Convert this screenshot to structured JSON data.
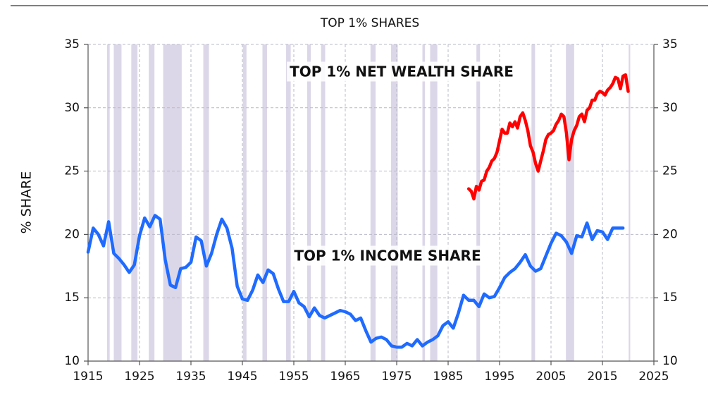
{
  "chart_data": {
    "type": "line",
    "title": "TOP 1% SHARES",
    "ylabel": "% SHARE",
    "annotations": [
      "TOP 1% NET WEALTH SHARE",
      "TOP 1% INCOME SHARE"
    ],
    "xlim": [
      1915,
      2025
    ],
    "xticks": [
      1915,
      1925,
      1935,
      1945,
      1955,
      1965,
      1975,
      1985,
      1995,
      2005,
      2015,
      2025
    ],
    "ylim": [
      10,
      35
    ],
    "yticks": [
      10,
      15,
      20,
      25,
      30,
      35
    ],
    "y2lim": [
      10,
      35
    ],
    "y2ticks": [
      10,
      15,
      20,
      25,
      30,
      35
    ],
    "grid": true,
    "recession_color": "#dcd7e8",
    "recessions": [
      [
        1918.7,
        1919.2
      ],
      [
        1920.0,
        1921.5
      ],
      [
        1923.4,
        1924.6
      ],
      [
        1926.8,
        1927.9
      ],
      [
        1929.6,
        1933.2
      ],
      [
        1937.4,
        1938.5
      ],
      [
        1945.1,
        1945.8
      ],
      [
        1948.9,
        1949.8
      ],
      [
        1953.5,
        1954.4
      ],
      [
        1957.6,
        1958.3
      ],
      [
        1960.3,
        1961.1
      ],
      [
        1969.9,
        1970.9
      ],
      [
        1973.9,
        1975.2
      ],
      [
        1980.0,
        1980.5
      ],
      [
        1981.5,
        1982.9
      ],
      [
        1990.5,
        1991.2
      ],
      [
        2001.2,
        2001.9
      ],
      [
        2007.9,
        2009.5
      ],
      [
        2020.1,
        2020.4
      ]
    ],
    "series": [
      {
        "name": "TOP 1% INCOME SHARE",
        "color": "#1f6bff",
        "x": [
          1915,
          1916,
          1917,
          1918,
          1919,
          1920,
          1921,
          1922,
          1923,
          1924,
          1925,
          1926,
          1927,
          1928,
          1929,
          1930,
          1931,
          1932,
          1933,
          1934,
          1935,
          1936,
          1937,
          1938,
          1939,
          1940,
          1941,
          1942,
          1943,
          1944,
          1945,
          1946,
          1947,
          1948,
          1949,
          1950,
          1951,
          1952,
          1953,
          1954,
          1955,
          1956,
          1957,
          1958,
          1959,
          1960,
          1961,
          1962,
          1963,
          1964,
          1965,
          1966,
          1967,
          1968,
          1969,
          1970,
          1971,
          1972,
          1973,
          1974,
          1975,
          1976,
          1977,
          1978,
          1979,
          1980,
          1981,
          1982,
          1983,
          1984,
          1985,
          1986,
          1987,
          1988,
          1989,
          1990,
          1991,
          1992,
          1993,
          1994,
          1995,
          1996,
          1997,
          1998,
          1999,
          2000,
          2001,
          2002,
          2003,
          2004,
          2005,
          2006,
          2007,
          2008,
          2009,
          2010,
          2011,
          2012,
          2013,
          2014,
          2015,
          2016,
          2017,
          2018,
          2019
        ],
        "values": [
          18.6,
          20.5,
          20.0,
          19.1,
          21.0,
          18.5,
          18.1,
          17.6,
          17.0,
          17.6,
          19.9,
          21.3,
          20.6,
          21.5,
          21.2,
          18.0,
          16.0,
          15.8,
          17.3,
          17.4,
          17.8,
          19.8,
          19.5,
          17.5,
          18.5,
          20.0,
          21.2,
          20.5,
          18.9,
          15.9,
          14.9,
          14.8,
          15.6,
          16.8,
          16.2,
          17.2,
          16.9,
          15.7,
          14.7,
          14.7,
          15.5,
          14.6,
          14.3,
          13.5,
          14.2,
          13.6,
          13.4,
          13.6,
          13.8,
          14.0,
          13.9,
          13.7,
          13.2,
          13.4,
          12.4,
          11.5,
          11.8,
          11.9,
          11.7,
          11.2,
          11.1,
          11.1,
          11.4,
          11.2,
          11.7,
          11.2,
          11.5,
          11.7,
          12.0,
          12.8,
          13.1,
          12.6,
          13.8,
          15.2,
          14.8,
          14.8,
          14.3,
          15.3,
          15.0,
          15.1,
          15.8,
          16.6,
          17.0,
          17.3,
          17.8,
          18.4,
          17.5,
          17.1,
          17.3,
          18.3,
          19.3,
          20.1,
          19.9,
          19.4,
          18.5,
          19.9,
          19.8,
          20.9,
          19.6,
          20.3,
          20.2,
          19.6,
          20.5,
          20.5,
          20.5
        ]
      },
      {
        "name": "TOP 1% NET WEALTH SHARE",
        "color": "#ff0000",
        "x": [
          1989,
          1989.5,
          1990,
          1990.5,
          1991,
          1991.5,
          1992,
          1992.5,
          1993,
          1993.5,
          1994,
          1994.5,
          1995,
          1995.5,
          1996,
          1996.5,
          1997,
          1997.5,
          1998,
          1998.5,
          1999,
          1999.5,
          2000,
          2000.5,
          2001,
          2001.5,
          2002,
          2002.5,
          2003,
          2003.5,
          2004,
          2004.5,
          2005,
          2005.5,
          2006,
          2006.5,
          2007,
          2007.5,
          2008,
          2008.5,
          2009,
          2009.5,
          2010,
          2010.5,
          2011,
          2011.5,
          2012,
          2012.5,
          2013,
          2013.5,
          2014,
          2014.5,
          2015,
          2015.5,
          2016,
          2016.5,
          2017,
          2017.5,
          2018,
          2018.5,
          2019,
          2019.5,
          2020
        ],
        "values": [
          23.6,
          23.4,
          22.8,
          23.8,
          23.5,
          24.2,
          24.3,
          25.0,
          25.3,
          25.8,
          26.0,
          26.5,
          27.4,
          28.3,
          28.0,
          28.0,
          28.8,
          28.5,
          28.9,
          28.4,
          29.3,
          29.6,
          29.0,
          28.2,
          27.0,
          26.5,
          25.6,
          25.0,
          25.8,
          26.6,
          27.5,
          27.9,
          28.0,
          28.2,
          28.7,
          29.0,
          29.5,
          29.3,
          28.0,
          25.9,
          27.5,
          28.2,
          28.6,
          29.3,
          29.5,
          28.9,
          29.8,
          30.0,
          30.6,
          30.6,
          31.1,
          31.3,
          31.2,
          31.0,
          31.4,
          31.6,
          31.9,
          32.4,
          32.3,
          31.5,
          32.5,
          32.6,
          31.3
        ]
      }
    ]
  }
}
